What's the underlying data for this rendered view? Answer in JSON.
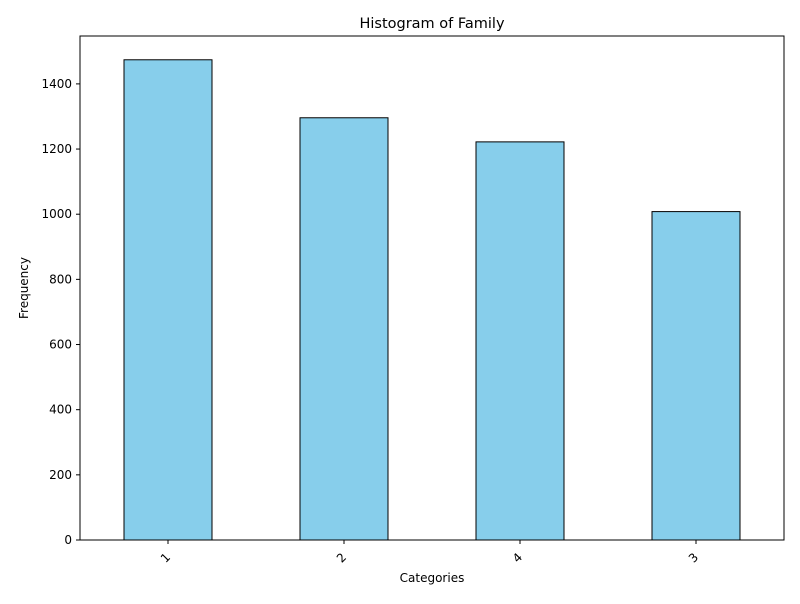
{
  "chart_data": {
    "type": "bar",
    "title": "Histogram of Family",
    "xlabel": "Categories",
    "ylabel": "Frequency",
    "categories": [
      "1",
      "2",
      "4",
      "3"
    ],
    "values": [
      1474,
      1296,
      1222,
      1008
    ],
    "ylim": [
      0,
      1547
    ],
    "yticks": [
      "0",
      "200",
      "400",
      "600",
      "800",
      "1000",
      "1200",
      "1400"
    ],
    "bar_color": "#87CEEB",
    "bar_edge_color": "#000000",
    "grid": false,
    "legend": "none",
    "x_tick_rotation": 45
  }
}
